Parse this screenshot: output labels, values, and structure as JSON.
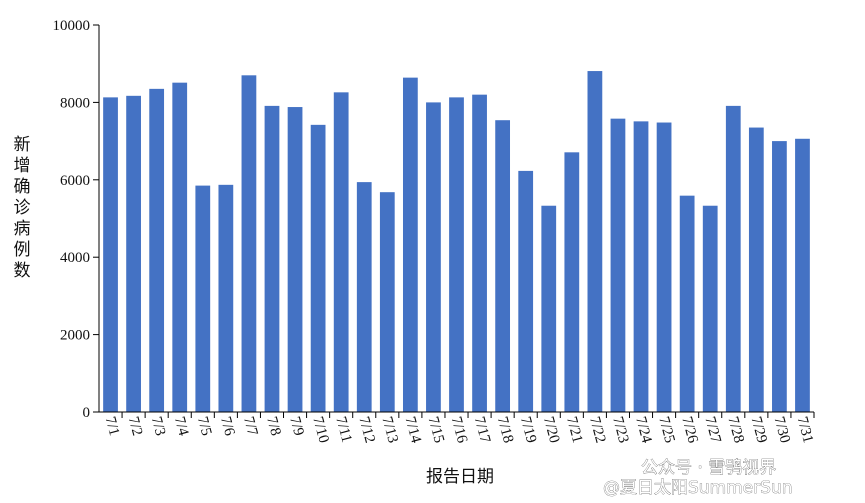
{
  "chart_data": {
    "type": "bar",
    "xlabel": "报告日期",
    "ylabel": "新增确诊病例数",
    "ylim": [
      0,
      10000
    ],
    "yticks": [
      0,
      2000,
      4000,
      6000,
      8000,
      10000
    ],
    "bar_color": "#4472C4",
    "grid": false,
    "categories": [
      "7/1",
      "7/2",
      "7/3",
      "7/4",
      "7/5",
      "7/6",
      "7/7",
      "7/8",
      "7/9",
      "7/10",
      "7/11",
      "7/12",
      "7/13",
      "7/14",
      "7/15",
      "7/16",
      "7/17",
      "7/18",
      "7/19",
      "7/20",
      "7/21",
      "7/22",
      "7/23",
      "7/24",
      "7/25",
      "7/26",
      "7/27",
      "7/28",
      "7/29",
      "7/30",
      "7/31"
    ],
    "values": [
      8130,
      8170,
      8350,
      8510,
      5850,
      5870,
      8700,
      7910,
      7880,
      7420,
      8260,
      5940,
      5680,
      8640,
      8000,
      8130,
      8200,
      7540,
      6230,
      5330,
      6710,
      8810,
      7580,
      7510,
      7480,
      5590,
      5330,
      7910,
      7350,
      7000,
      7060
    ]
  },
  "watermark": {
    "line1": "公众号 · 雪鸮视界",
    "line2": "@夏日太阳SummerSun"
  }
}
